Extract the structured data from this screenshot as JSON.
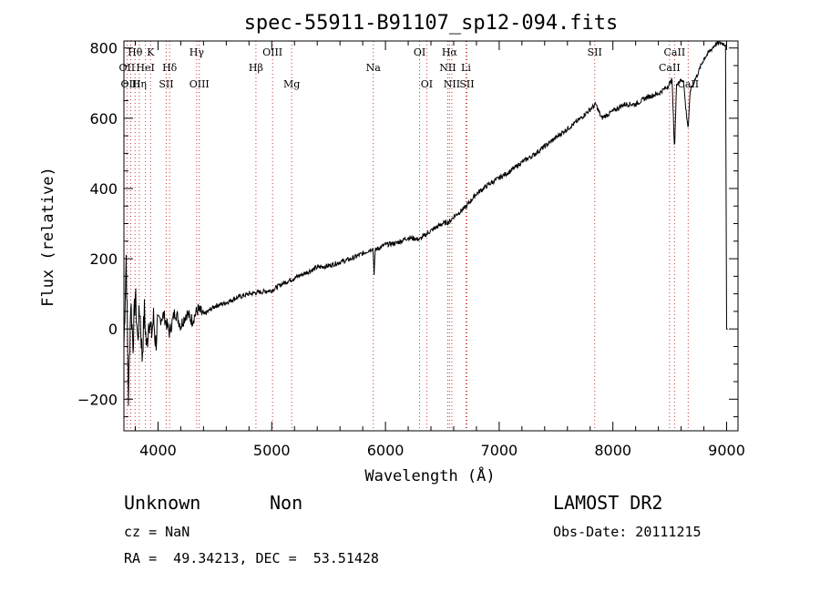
{
  "chart_data": {
    "type": "line",
    "title": "spec-55911-B91107_sp12-094.fits",
    "xlabel": "Wavelength (Å)",
    "ylabel": "Flux (relative)",
    "xlim": [
      3700,
      9100
    ],
    "ylim": [
      -290,
      820
    ],
    "xticks": [
      4000,
      5000,
      6000,
      7000,
      8000,
      9000
    ],
    "yticks": [
      -200,
      0,
      200,
      400,
      600,
      800
    ],
    "grid": false,
    "series": [
      {
        "x": [
          3700,
          3720,
          3740,
          3760,
          3780,
          3800,
          3820,
          3840,
          3860,
          3880,
          3900,
          3920,
          3940,
          3960,
          3980,
          4000,
          4050,
          4100,
          4150,
          4200,
          4250,
          4300,
          4350,
          4400,
          4500,
          4600,
          4700,
          4800,
          4900,
          5000,
          5100,
          5200,
          5300,
          5400,
          5500,
          5600,
          5700,
          5800,
          5890,
          5900,
          5910,
          6000,
          6100,
          6200,
          6300,
          6400,
          6500,
          6563,
          6600,
          6700,
          6800,
          6900,
          7000,
          7100,
          7200,
          7300,
          7400,
          7500,
          7600,
          7700,
          7800,
          7850,
          7900,
          8000,
          8100,
          8200,
          8300,
          8400,
          8480,
          8520,
          8542,
          8560,
          8620,
          8640,
          8662,
          8680,
          8750,
          8800,
          8850,
          8900,
          8950,
          8990,
          9000,
          9010
        ],
        "y": [
          -50,
          210,
          -200,
          80,
          -40,
          100,
          -30,
          60,
          -80,
          50,
          -60,
          40,
          -20,
          30,
          -40,
          20,
          40,
          -10,
          50,
          10,
          45,
          25,
          55,
          40,
          65,
          75,
          90,
          100,
          105,
          110,
          130,
          145,
          160,
          175,
          180,
          190,
          200,
          215,
          230,
          160,
          225,
          240,
          245,
          260,
          255,
          280,
          300,
          305,
          320,
          345,
          385,
          410,
          430,
          450,
          475,
          495,
          520,
          545,
          570,
          595,
          625,
          640,
          600,
          620,
          640,
          640,
          660,
          670,
          690,
          710,
          510,
          700,
          710,
          630,
          570,
          680,
          730,
          770,
          790,
          810,
          815,
          810,
          0,
          0
        ]
      }
    ],
    "lines": [
      {
        "label": "Hθ",
        "x": 3798,
        "row": 0
      },
      {
        "label": "K",
        "x": 3934,
        "row": 0
      },
      {
        "label": "OII",
        "x": 3727,
        "row": 1
      },
      {
        "label": "HeI",
        "x": 3889,
        "row": 1
      },
      {
        "label": "Hδ",
        "x": 4102,
        "row": 1
      },
      {
        "label": "OIII",
        "x": 3760,
        "row": 2
      },
      {
        "label": "Hη",
        "x": 3835,
        "row": 2
      },
      {
        "label": "SII",
        "x": 4072,
        "row": 2
      },
      {
        "label": "Hγ",
        "x": 4340,
        "row": 0
      },
      {
        "label": "OIII",
        "x": 4363,
        "row": 2
      },
      {
        "label": "OIII",
        "x": 5007,
        "row": 0
      },
      {
        "label": "Hβ",
        "x": 4861,
        "row": 1
      },
      {
        "label": "Mg",
        "x": 5175,
        "row": 2
      },
      {
        "label": "Na",
        "x": 5893,
        "row": 1
      },
      {
        "label": "OI",
        "x": 6300,
        "row": 0
      },
      {
        "label": "OI",
        "x": 6363,
        "row": 2
      },
      {
        "label": "Hα",
        "x": 6563,
        "row": 0
      },
      {
        "label": "NII",
        "x": 6548,
        "row": 1
      },
      {
        "label": "Li",
        "x": 6708,
        "row": 1
      },
      {
        "label": "NII",
        "x": 6584,
        "row": 2
      },
      {
        "label": "SII",
        "x": 6716,
        "row": 2
      },
      {
        "label": "SII",
        "x": 7840,
        "row": 0
      },
      {
        "label": "CaII",
        "x": 8542,
        "row": 0
      },
      {
        "label": "CaII",
        "x": 8498,
        "row": 1
      },
      {
        "label": "CaII",
        "x": 8662,
        "row": 2
      }
    ]
  },
  "footer": {
    "class_text": "Unknown",
    "subclass_text": "Non",
    "survey": "LAMOST DR2",
    "cz": "cz = NaN",
    "obs_date": "Obs-Date: 20111215",
    "coords": "RA =  49.34213, DEC =  53.51428"
  },
  "colors": {
    "line_markers": "#cc3333",
    "spectrum": "#000000"
  }
}
